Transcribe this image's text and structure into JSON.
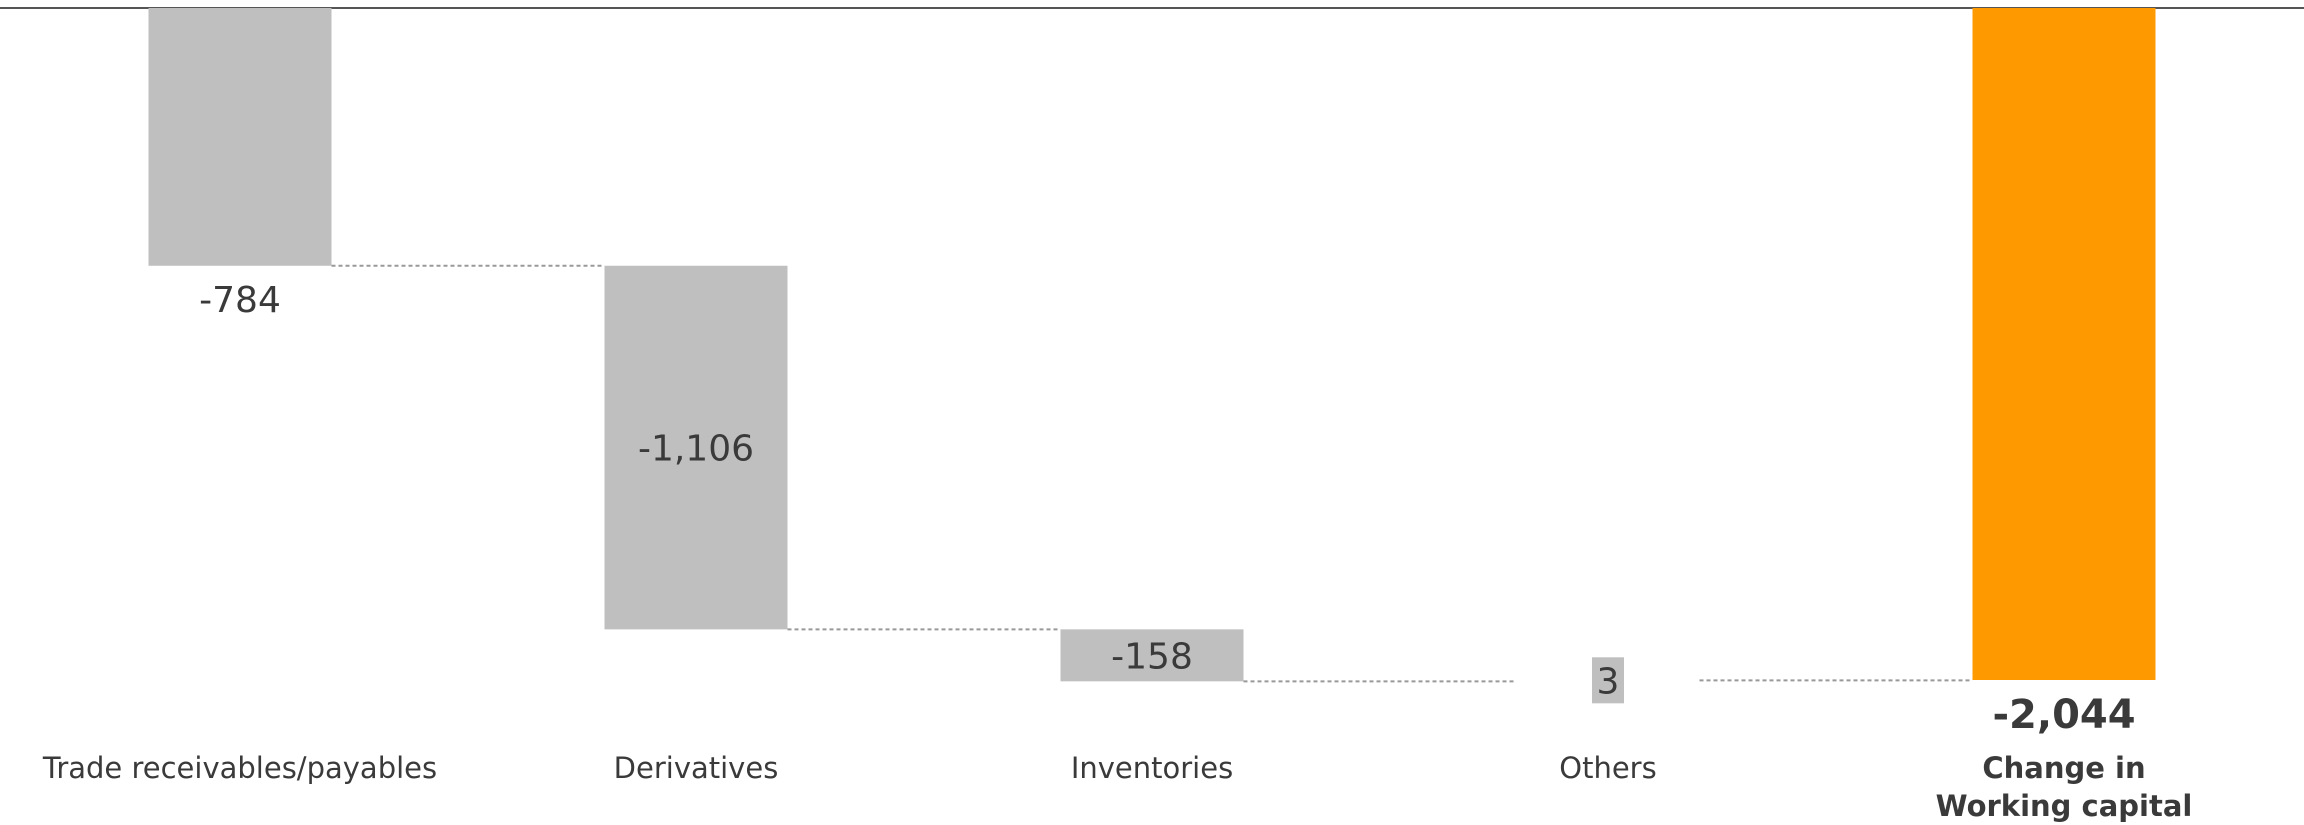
{
  "chart_data": {
    "type": "bar",
    "variant": "waterfall",
    "categories": [
      "Trade receivables/payables",
      "Derivatives",
      "Inventories",
      "Others",
      "Change in Working capital"
    ],
    "category_lines": [
      [
        "Trade receivables/payables"
      ],
      [
        "Derivatives"
      ],
      [
        "Inventories"
      ],
      [
        "Others"
      ],
      [
        "Change in",
        "Working capital"
      ]
    ],
    "values": [
      -784,
      -1106,
      -158,
      3,
      -2044
    ],
    "labels": [
      "-784",
      "-1,106",
      "-158",
      "3",
      "-2,044"
    ],
    "is_total": [
      false,
      false,
      false,
      false,
      true
    ],
    "ylim": [
      -2044,
      0
    ],
    "grid": false,
    "legend": "none",
    "colors": {
      "step": "#bfbfbf",
      "total": "#ff9900",
      "axis": "#555555",
      "connector": "#999999",
      "text": "#3a3a3a"
    }
  }
}
